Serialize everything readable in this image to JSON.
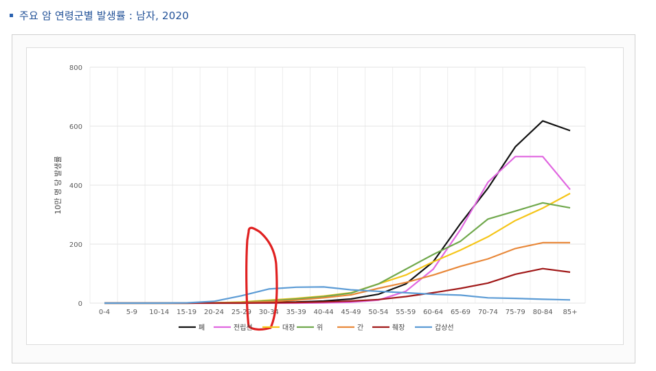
{
  "heading": {
    "title": "주요 암 연령군별 발생률 : 남자, 2020"
  },
  "colors": {
    "heading": "#1f4f96",
    "bullet": "#2a62b0"
  },
  "chart_data": {
    "type": "line",
    "title": "주요 암 연령군별 발생률 : 남자, 2020",
    "ylabel": "10만 명 당 발생률",
    "xlabel": "",
    "ylim": [
      0,
      800
    ],
    "yticks": [
      0,
      200,
      400,
      600,
      800
    ],
    "grid": true,
    "legend": "bottom",
    "categories": [
      "0-4",
      "5-9",
      "10-14",
      "15-19",
      "20-24",
      "25-29",
      "30-34",
      "35-39",
      "40-44",
      "45-49",
      "50-54",
      "55-59",
      "60-64",
      "65-69",
      "70-74",
      "75-79",
      "80-84",
      "85+"
    ],
    "series": [
      {
        "name": "폐",
        "color": "#111111",
        "values": [
          0,
          0,
          0,
          0,
          1,
          2,
          3,
          4,
          7,
          14,
          30,
          65,
          140,
          270,
          390,
          530,
          618,
          585
        ]
      },
      {
        "name": "전립선",
        "color": "#e066e0",
        "values": [
          0,
          0,
          0,
          0,
          0,
          0,
          0,
          0,
          1,
          3,
          10,
          40,
          115,
          250,
          410,
          497,
          497,
          385
        ]
      },
      {
        "name": "대장",
        "color": "#f5c518",
        "values": [
          0,
          0,
          0,
          0,
          1,
          4,
          10,
          16,
          24,
          35,
          65,
          95,
          140,
          180,
          225,
          280,
          322,
          372
        ]
      },
      {
        "name": "위",
        "color": "#70a84c",
        "values": [
          0,
          0,
          0,
          0,
          1,
          3,
          8,
          14,
          22,
          34,
          65,
          115,
          165,
          210,
          285,
          312,
          340,
          323
        ]
      },
      {
        "name": "간",
        "color": "#e8883a",
        "values": [
          0,
          0,
          0,
          0,
          1,
          2,
          5,
          10,
          18,
          28,
          50,
          70,
          95,
          125,
          150,
          185,
          205,
          205
        ]
      },
      {
        "name": "췌장",
        "color": "#a01818",
        "values": [
          0,
          0,
          0,
          0,
          0,
          0,
          1,
          2,
          4,
          7,
          12,
          22,
          35,
          50,
          68,
          98,
          117,
          105
        ]
      },
      {
        "name": "갑상선",
        "color": "#5b9bd5",
        "values": [
          0,
          0,
          0,
          1,
          6,
          25,
          48,
          54,
          55,
          45,
          40,
          35,
          30,
          27,
          18,
          16,
          13,
          11
        ]
      }
    ],
    "annotation": {
      "type": "hand-drawn-circle",
      "color": "#e02020",
      "target_categories": [
        "25-29",
        "30-34"
      ]
    }
  }
}
